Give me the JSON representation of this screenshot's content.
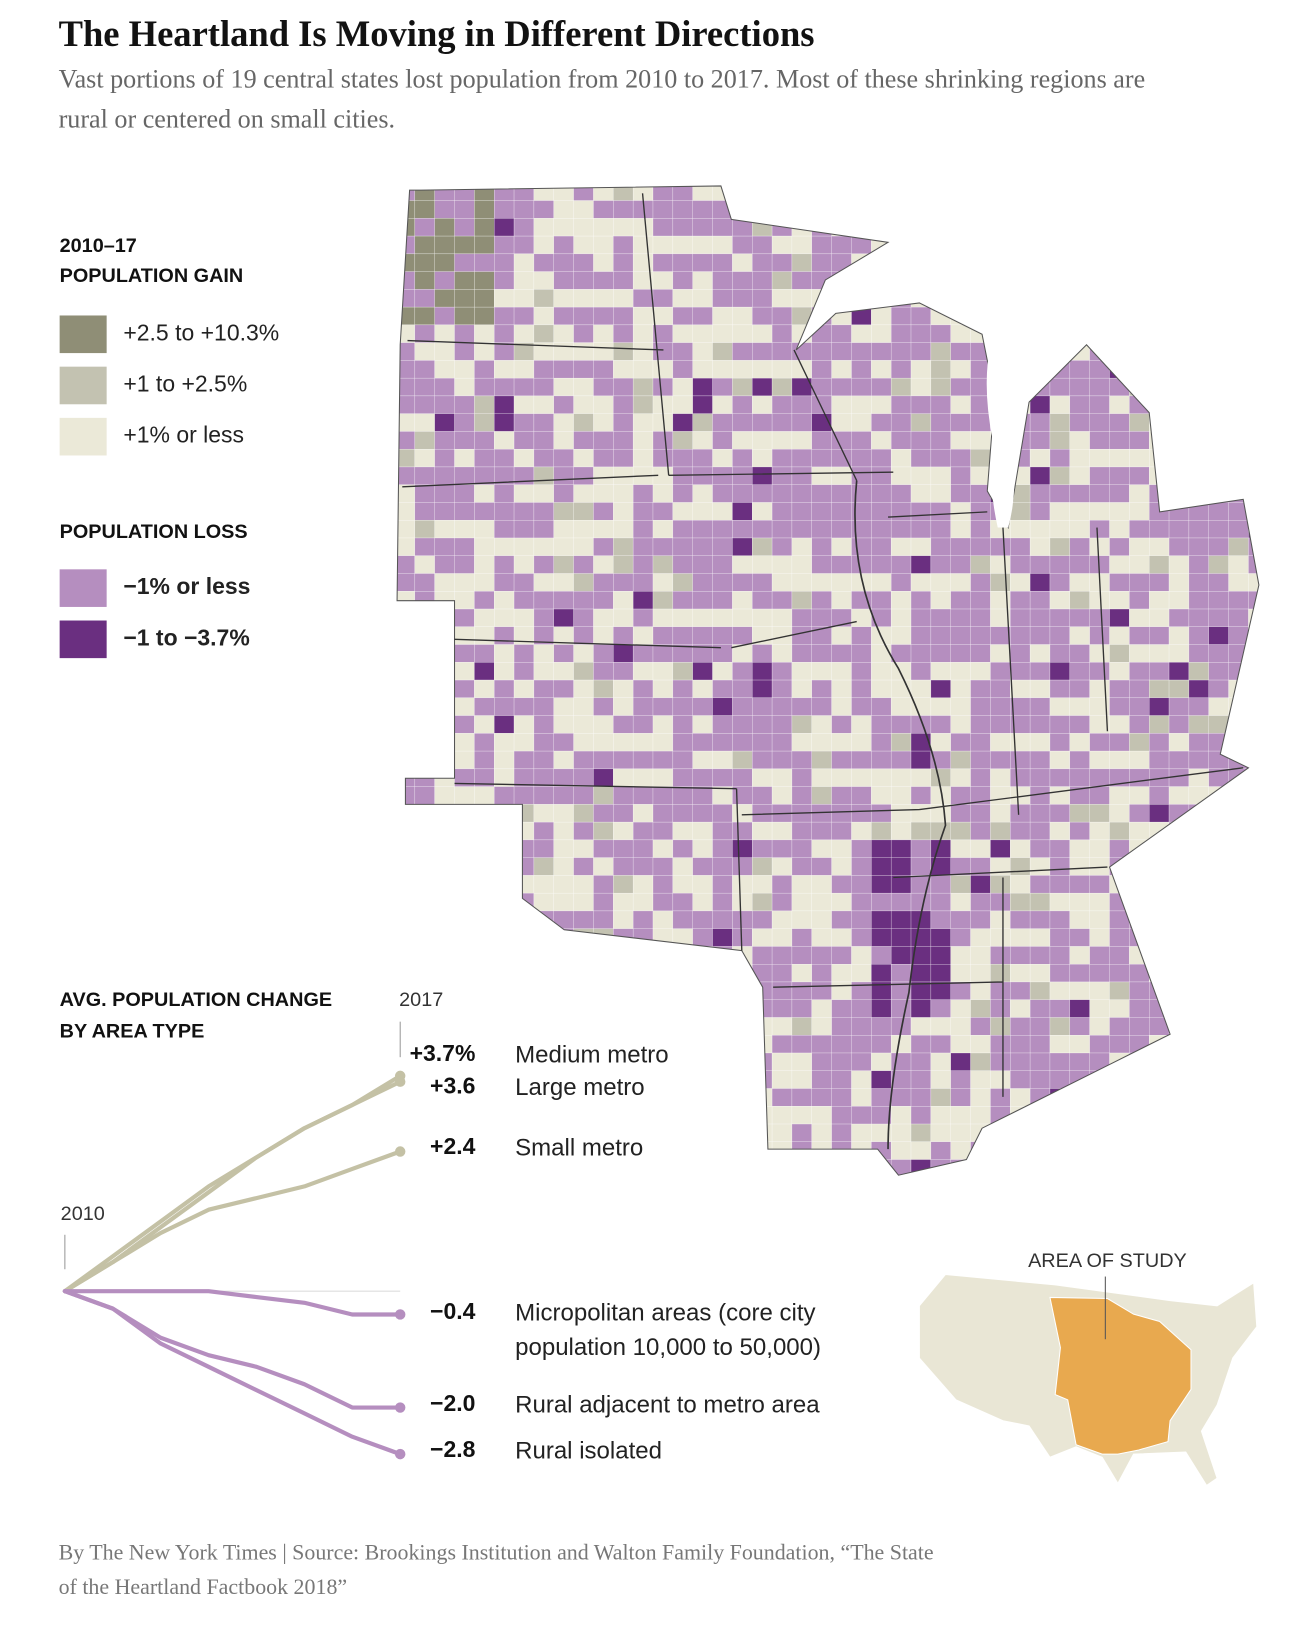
{
  "header": {
    "title": "The Heartland Is Moving in Different Directions",
    "subtitle": "Vast portions of 19 central states lost population from 2010 to 2017. Most of these shrinking regions are rural or centered on small cities."
  },
  "legend": {
    "gain_title": [
      "2010–17",
      "POPULATION GAIN"
    ],
    "gain_items": [
      {
        "label": "+2.5 to +10.3%",
        "color": "#8f8e76"
      },
      {
        "label": "+1 to +2.5%",
        "color": "#c3c2b1"
      },
      {
        "label": "+1% or less",
        "color": "#ebe9d8"
      }
    ],
    "loss_title": "POPULATION LOSS",
    "loss_items": [
      {
        "label": "−1% or less",
        "color": "#b58ebf"
      },
      {
        "label": "−1 to −3.7%",
        "color": "#6a2f80"
      }
    ]
  },
  "chart_data": {
    "type": "line",
    "title": [
      "AVG. POPULATION CHANGE",
      "BY AREA TYPE"
    ],
    "x": [
      2010,
      2011,
      2012,
      2013,
      2014,
      2015,
      2016,
      2017
    ],
    "xlim": [
      2010,
      2017
    ],
    "xticks": [
      2010,
      2017
    ],
    "ylim": [
      -3,
      4
    ],
    "series": [
      {
        "name": "Medium metro",
        "color": "#c4c1a5",
        "values": [
          0,
          0.6,
          1.2,
          1.8,
          2.3,
          2.8,
          3.2,
          3.7
        ],
        "value_labels": [
          null,
          null,
          null,
          null,
          null,
          null,
          null,
          "+3.7%"
        ]
      },
      {
        "name": "Large metro",
        "color": "#c4c1a5",
        "values": [
          0,
          0.5,
          1.1,
          1.7,
          2.3,
          2.8,
          3.2,
          3.6
        ],
        "value_labels": [
          null,
          null,
          null,
          null,
          null,
          null,
          null,
          "+3.6"
        ]
      },
      {
        "name": "Small metro",
        "color": "#c4c1a5",
        "values": [
          0,
          0.5,
          1.0,
          1.4,
          1.6,
          1.8,
          2.1,
          2.4
        ],
        "value_labels": [
          null,
          null,
          null,
          null,
          null,
          null,
          null,
          "+2.4"
        ]
      },
      {
        "name": "Micropolitan areas (core city population 10,000 to 50,000)",
        "color": "#b58ebf",
        "values": [
          0,
          0,
          0,
          0,
          -0.1,
          -0.2,
          -0.4,
          -0.4
        ],
        "value_labels": [
          null,
          null,
          null,
          null,
          null,
          null,
          null,
          "−0.4"
        ]
      },
      {
        "name": "Rural adjacent to metro area",
        "color": "#b58ebf",
        "values": [
          0,
          -0.3,
          -0.8,
          -1.1,
          -1.3,
          -1.6,
          -2.0,
          -2.0
        ],
        "value_labels": [
          null,
          null,
          null,
          null,
          null,
          null,
          null,
          "−2.0"
        ]
      },
      {
        "name": "Rural isolated",
        "color": "#b58ebf",
        "values": [
          0,
          -0.3,
          -0.9,
          -1.3,
          -1.7,
          -2.1,
          -2.5,
          -2.8
        ],
        "value_labels": [
          null,
          null,
          null,
          null,
          null,
          null,
          null,
          "−2.8"
        ]
      }
    ]
  },
  "inset": {
    "label": "AREA OF STUDY"
  },
  "footer": {
    "source": [
      "By The New York Times | Source: Brookings Institution and Walton Family Foundation, “The State",
      "of the Heartland Factbook 2018”"
    ]
  }
}
